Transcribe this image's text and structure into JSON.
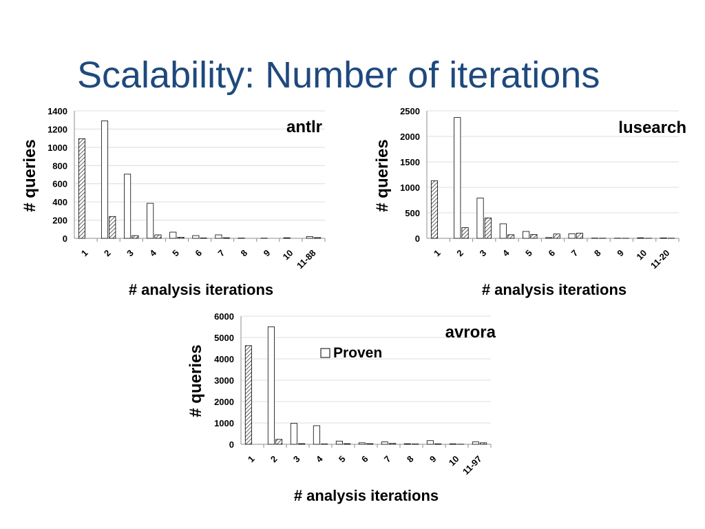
{
  "slide": {
    "title": "Scalability: Number of iterations"
  },
  "chart_data": [
    {
      "type": "bar",
      "title": "antlr",
      "xlabel": "# analysis iterations",
      "ylabel": "# queries",
      "ylim": [
        0,
        1400
      ],
      "yticks": [
        0,
        200,
        400,
        600,
        800,
        1000,
        1200,
        1400
      ],
      "grid": true,
      "categories": [
        "1",
        "2",
        "3",
        "4",
        "5",
        "6",
        "7",
        "8",
        "9",
        "10",
        "11-88"
      ],
      "series": [
        {
          "name": "Proven",
          "pattern": "solid-white",
          "values": [
            0,
            1290,
            705,
            385,
            68,
            30,
            38,
            3,
            2,
            6,
            20
          ]
        },
        {
          "name": "",
          "pattern": "hatched",
          "values": [
            1095,
            240,
            30,
            38,
            12,
            4,
            6,
            0,
            0,
            0,
            8
          ]
        }
      ]
    },
    {
      "type": "bar",
      "title": "lusearch",
      "xlabel": "# analysis iterations",
      "ylabel": "# queries",
      "ylim": [
        0,
        2500
      ],
      "yticks": [
        0,
        500,
        1000,
        1500,
        2000,
        2500
      ],
      "grid": true,
      "categories": [
        "1",
        "2",
        "3",
        "4",
        "5",
        "6",
        "7",
        "8",
        "9",
        "10",
        "11-20"
      ],
      "series": [
        {
          "name": "Proven",
          "pattern": "solid-white",
          "values": [
            0,
            2370,
            790,
            285,
            135,
            15,
            90,
            5,
            3,
            10,
            8
          ]
        },
        {
          "name": "",
          "pattern": "hatched",
          "values": [
            1130,
            210,
            400,
            70,
            75,
            85,
            100,
            3,
            2,
            2,
            3
          ]
        }
      ]
    },
    {
      "type": "bar",
      "title": "avrora",
      "xlabel": "# analysis iterations",
      "ylabel": "# queries",
      "ylim": [
        0,
        6000
      ],
      "yticks": [
        0,
        1000,
        2000,
        3000,
        4000,
        5000,
        6000
      ],
      "grid": true,
      "legend": {
        "position": "top-right",
        "label": "Proven"
      },
      "categories": [
        "1",
        "2",
        "3",
        "4",
        "5",
        "6",
        "7",
        "8",
        "9",
        "10",
        "11-97"
      ],
      "series": [
        {
          "name": "Proven",
          "pattern": "solid-white",
          "values": [
            0,
            5500,
            980,
            870,
            150,
            70,
            110,
            25,
            170,
            20,
            110
          ]
        },
        {
          "name": "",
          "pattern": "hatched",
          "values": [
            4620,
            230,
            30,
            15,
            30,
            30,
            40,
            15,
            20,
            5,
            70
          ]
        }
      ]
    }
  ]
}
